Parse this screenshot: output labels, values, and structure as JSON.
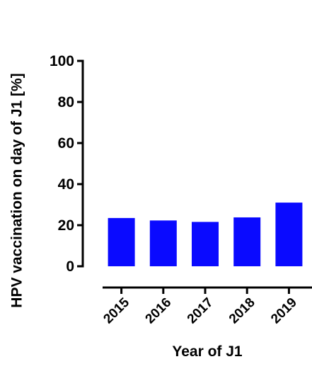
{
  "chart_data": {
    "type": "bar",
    "categories": [
      "2015",
      "2016",
      "2017",
      "2018",
      "2019"
    ],
    "values": [
      23.5,
      22.3,
      21.6,
      23.8,
      31.0
    ],
    "title": "",
    "xlabel": "Year of J1",
    "ylabel": "HPV vaccination on day of J1 [%]",
    "ylim": [
      0,
      100
    ],
    "yticks": [
      0,
      20,
      40,
      60,
      80,
      100
    ],
    "grid": false,
    "bar_color": "#0a0aff"
  }
}
